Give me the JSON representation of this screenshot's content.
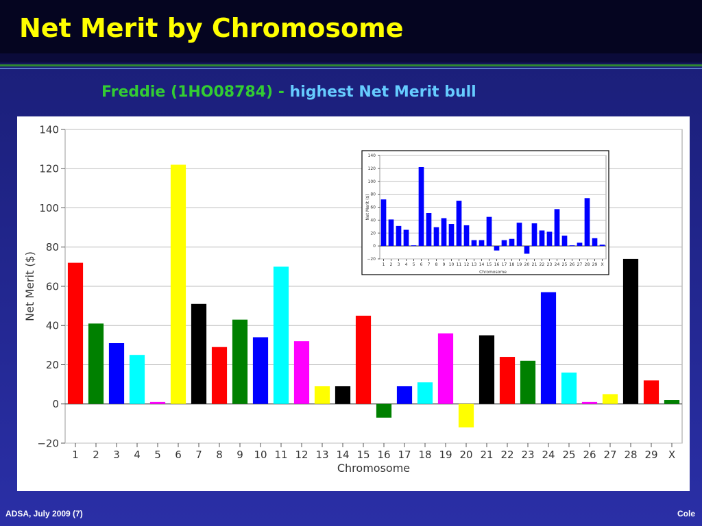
{
  "slide": {
    "title": "Net Merit by Chromosome",
    "subtitle_part1": "Freddie (1HO08784)",
    "subtitle_sep": " - ",
    "subtitle_part2": "highest Net Merit bull",
    "footer_left": "ADSA, July 2009 (7)",
    "footer_right": "Cole"
  },
  "colors": {
    "title": "#ffff00",
    "subtitle_green": "#33cc33",
    "subtitle_blue": "#66ccff",
    "inset_bar": "#0000ff",
    "background": "#2a2fa6"
  },
  "chart_data": [
    {
      "type": "bar",
      "categories": [
        "1",
        "2",
        "3",
        "4",
        "5",
        "6",
        "7",
        "8",
        "9",
        "10",
        "11",
        "12",
        "13",
        "14",
        "15",
        "16",
        "17",
        "18",
        "19",
        "20",
        "21",
        "22",
        "23",
        "24",
        "25",
        "26",
        "27",
        "28",
        "29",
        "X"
      ],
      "values": [
        72,
        41,
        31,
        25,
        1,
        122,
        51,
        29,
        43,
        34,
        70,
        32,
        9,
        9,
        45,
        -7,
        9,
        11,
        36,
        -12,
        35,
        24,
        22,
        57,
        16,
        1,
        5,
        74,
        12,
        2
      ],
      "bar_colors": [
        "#ff0000",
        "#008000",
        "#0000ff",
        "#00ffff",
        "#ff00ff",
        "#ffff00",
        "#000000",
        "#ff0000",
        "#008000",
        "#0000ff",
        "#00ffff",
        "#ff00ff",
        "#ffff00",
        "#000000",
        "#ff0000",
        "#008000",
        "#0000ff",
        "#00ffff",
        "#ff00ff",
        "#ffff00",
        "#000000",
        "#ff0000",
        "#008000",
        "#0000ff",
        "#00ffff",
        "#ff00ff",
        "#ffff00",
        "#000000",
        "#ff0000",
        "#008000"
      ],
      "xlabel": "Chromosome",
      "ylabel": "Net Merit ($)",
      "ylim": [
        -20,
        140
      ],
      "yticks": [
        -20,
        0,
        20,
        40,
        60,
        80,
        100,
        120,
        140
      ],
      "grid": true
    },
    {
      "type": "bar",
      "categories": [
        "1",
        "2",
        "3",
        "4",
        "5",
        "6",
        "7",
        "8",
        "9",
        "10",
        "11",
        "12",
        "13",
        "14",
        "15",
        "16",
        "17",
        "18",
        "19",
        "20",
        "21",
        "22",
        "23",
        "24",
        "25",
        "26",
        "27",
        "28",
        "29",
        "X"
      ],
      "values": [
        72,
        41,
        31,
        25,
        1,
        122,
        51,
        29,
        43,
        34,
        70,
        32,
        9,
        9,
        45,
        -7,
        9,
        11,
        36,
        -12,
        35,
        24,
        22,
        57,
        16,
        1,
        5,
        74,
        12,
        2
      ],
      "xlabel": "Chromosome",
      "ylabel": "Net Merit ($)",
      "ylim": [
        -20,
        140
      ],
      "yticks": [
        -20,
        0,
        20,
        40,
        60,
        80,
        100,
        120,
        140
      ],
      "grid": true
    }
  ]
}
